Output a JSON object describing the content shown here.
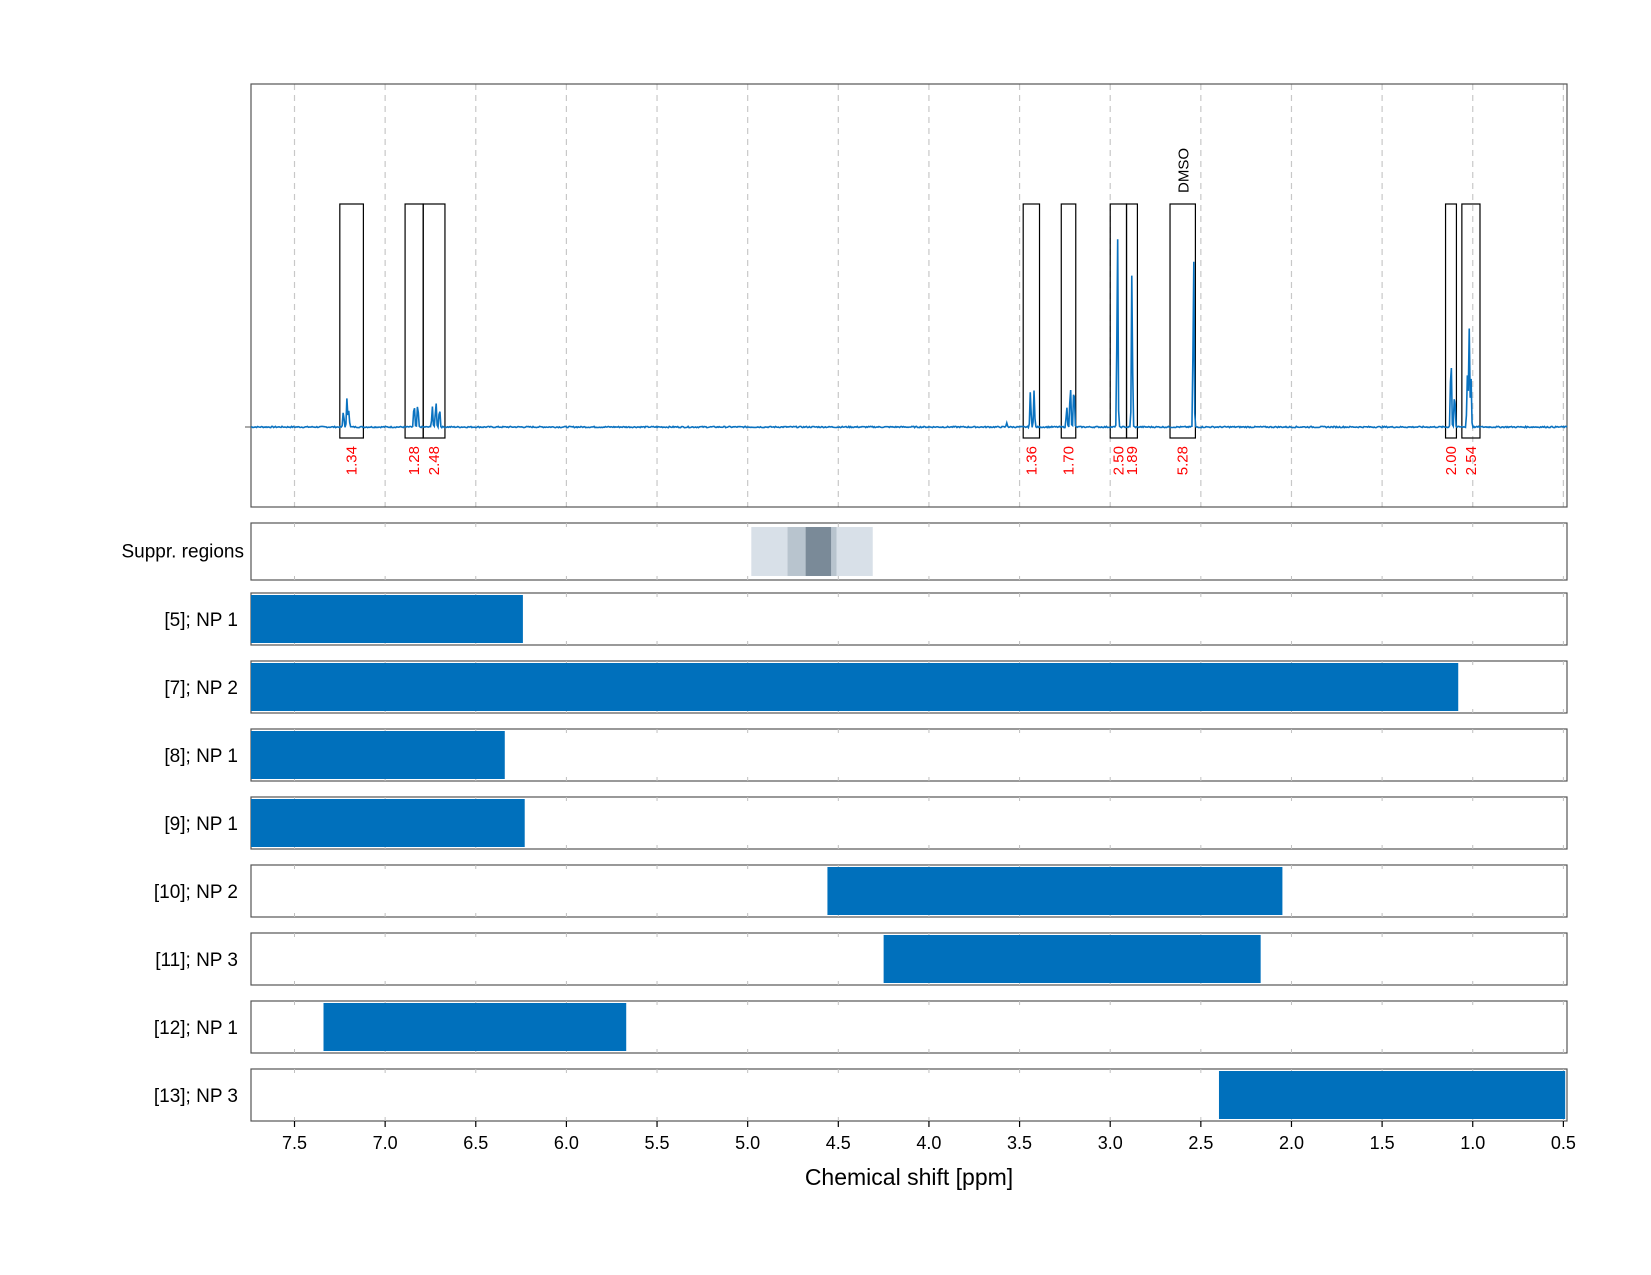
{
  "chart_data": {
    "type": "nmr_spectrum_with_range_bars",
    "xlabel": "Chemical shift [ppm]",
    "x_axis": {
      "reversed": true,
      "xlim": [
        7.74,
        0.48
      ],
      "ticks": [
        7.5,
        7.0,
        6.5,
        6.0,
        5.5,
        5.0,
        4.5,
        4.0,
        3.5,
        3.0,
        2.5,
        2.0,
        1.5,
        1.0,
        0.5
      ],
      "tick_labels": [
        "7.5",
        "7.0",
        "6.5",
        "6.0",
        "5.5",
        "5.0",
        "4.5",
        "4.0",
        "3.5",
        "3.0",
        "2.5",
        "2.0",
        "1.5",
        "1.0",
        "0.5"
      ]
    },
    "grid": "dashed vertical",
    "spectrum": {
      "color": "#0a72c0",
      "baseline": 0.0,
      "peaks": [
        {
          "ppm": 7.23,
          "height": 0.08
        },
        {
          "ppm": 7.21,
          "height": 0.14
        },
        {
          "ppm": 7.2,
          "height": 0.08
        },
        {
          "ppm": 6.84,
          "height": 0.12
        },
        {
          "ppm": 6.82,
          "height": 0.12
        },
        {
          "ppm": 6.74,
          "height": 0.1
        },
        {
          "ppm": 6.72,
          "height": 0.13
        },
        {
          "ppm": 6.7,
          "height": 0.1
        },
        {
          "ppm": 3.57,
          "height": 0.02
        },
        {
          "ppm": 3.44,
          "height": 0.17
        },
        {
          "ppm": 3.42,
          "height": 0.17
        },
        {
          "ppm": 3.24,
          "height": 0.1
        },
        {
          "ppm": 3.22,
          "height": 0.22
        },
        {
          "ppm": 3.2,
          "height": 0.22
        },
        {
          "ppm": 2.96,
          "height": 0.96
        },
        {
          "ppm": 2.88,
          "height": 0.75
        },
        {
          "ppm": 2.54,
          "height": 0.85
        },
        {
          "ppm": 1.12,
          "height": 0.37
        },
        {
          "ppm": 1.1,
          "height": 0.18
        },
        {
          "ppm": 1.03,
          "height": 0.24
        },
        {
          "ppm": 1.02,
          "height": 0.47
        },
        {
          "ppm": 1.01,
          "height": 0.24
        }
      ]
    },
    "integrals": [
      {
        "from": 7.25,
        "to": 7.12,
        "label": "1.34"
      },
      {
        "from": 6.89,
        "to": 6.79,
        "label": "1.28"
      },
      {
        "from": 6.79,
        "to": 6.67,
        "label": "2.48"
      },
      {
        "from": 3.48,
        "to": 3.39,
        "label": "1.36"
      },
      {
        "from": 3.27,
        "to": 3.19,
        "label": "1.70"
      },
      {
        "from": 3.0,
        "to": 2.91,
        "label": "2.50"
      },
      {
        "from": 2.91,
        "to": 2.85,
        "label": "1.89"
      },
      {
        "from": 2.67,
        "to": 2.53,
        "label": "5.28"
      },
      {
        "from": 1.15,
        "to": 1.09,
        "label": "2.00"
      },
      {
        "from": 1.06,
        "to": 0.96,
        "label": "2.54"
      }
    ],
    "integral_label_color": "#ff0000",
    "solvent_annotation": {
      "ppm": 2.6,
      "label": "DMSO"
    },
    "suppressed_regions": {
      "label": "Suppr. regions",
      "bands": [
        {
          "from": 4.98,
          "to": 4.31,
          "color": "#d8e0e8"
        },
        {
          "from": 4.78,
          "to": 4.51,
          "color": "#b8c4ce"
        },
        {
          "from": 4.68,
          "to": 4.54,
          "color": "#7a8a98"
        }
      ]
    },
    "bar_color": "#0070bc",
    "ranges": [
      {
        "label": "[5]; NP 1",
        "from": 7.74,
        "to": 6.24
      },
      {
        "label": "[7]; NP 2",
        "from": 7.74,
        "to": 1.08
      },
      {
        "label": "[8]; NP 1",
        "from": 7.74,
        "to": 6.34
      },
      {
        "label": "[9]; NP 1",
        "from": 7.74,
        "to": 6.23
      },
      {
        "label": "[10]; NP 2",
        "from": 4.56,
        "to": 2.05
      },
      {
        "label": "[11]; NP 3",
        "from": 4.25,
        "to": 2.17
      },
      {
        "label": "[12]; NP 1",
        "from": 7.34,
        "to": 5.67
      },
      {
        "label": "[13]; NP 3",
        "from": 2.4,
        "to": 0.49
      }
    ]
  }
}
